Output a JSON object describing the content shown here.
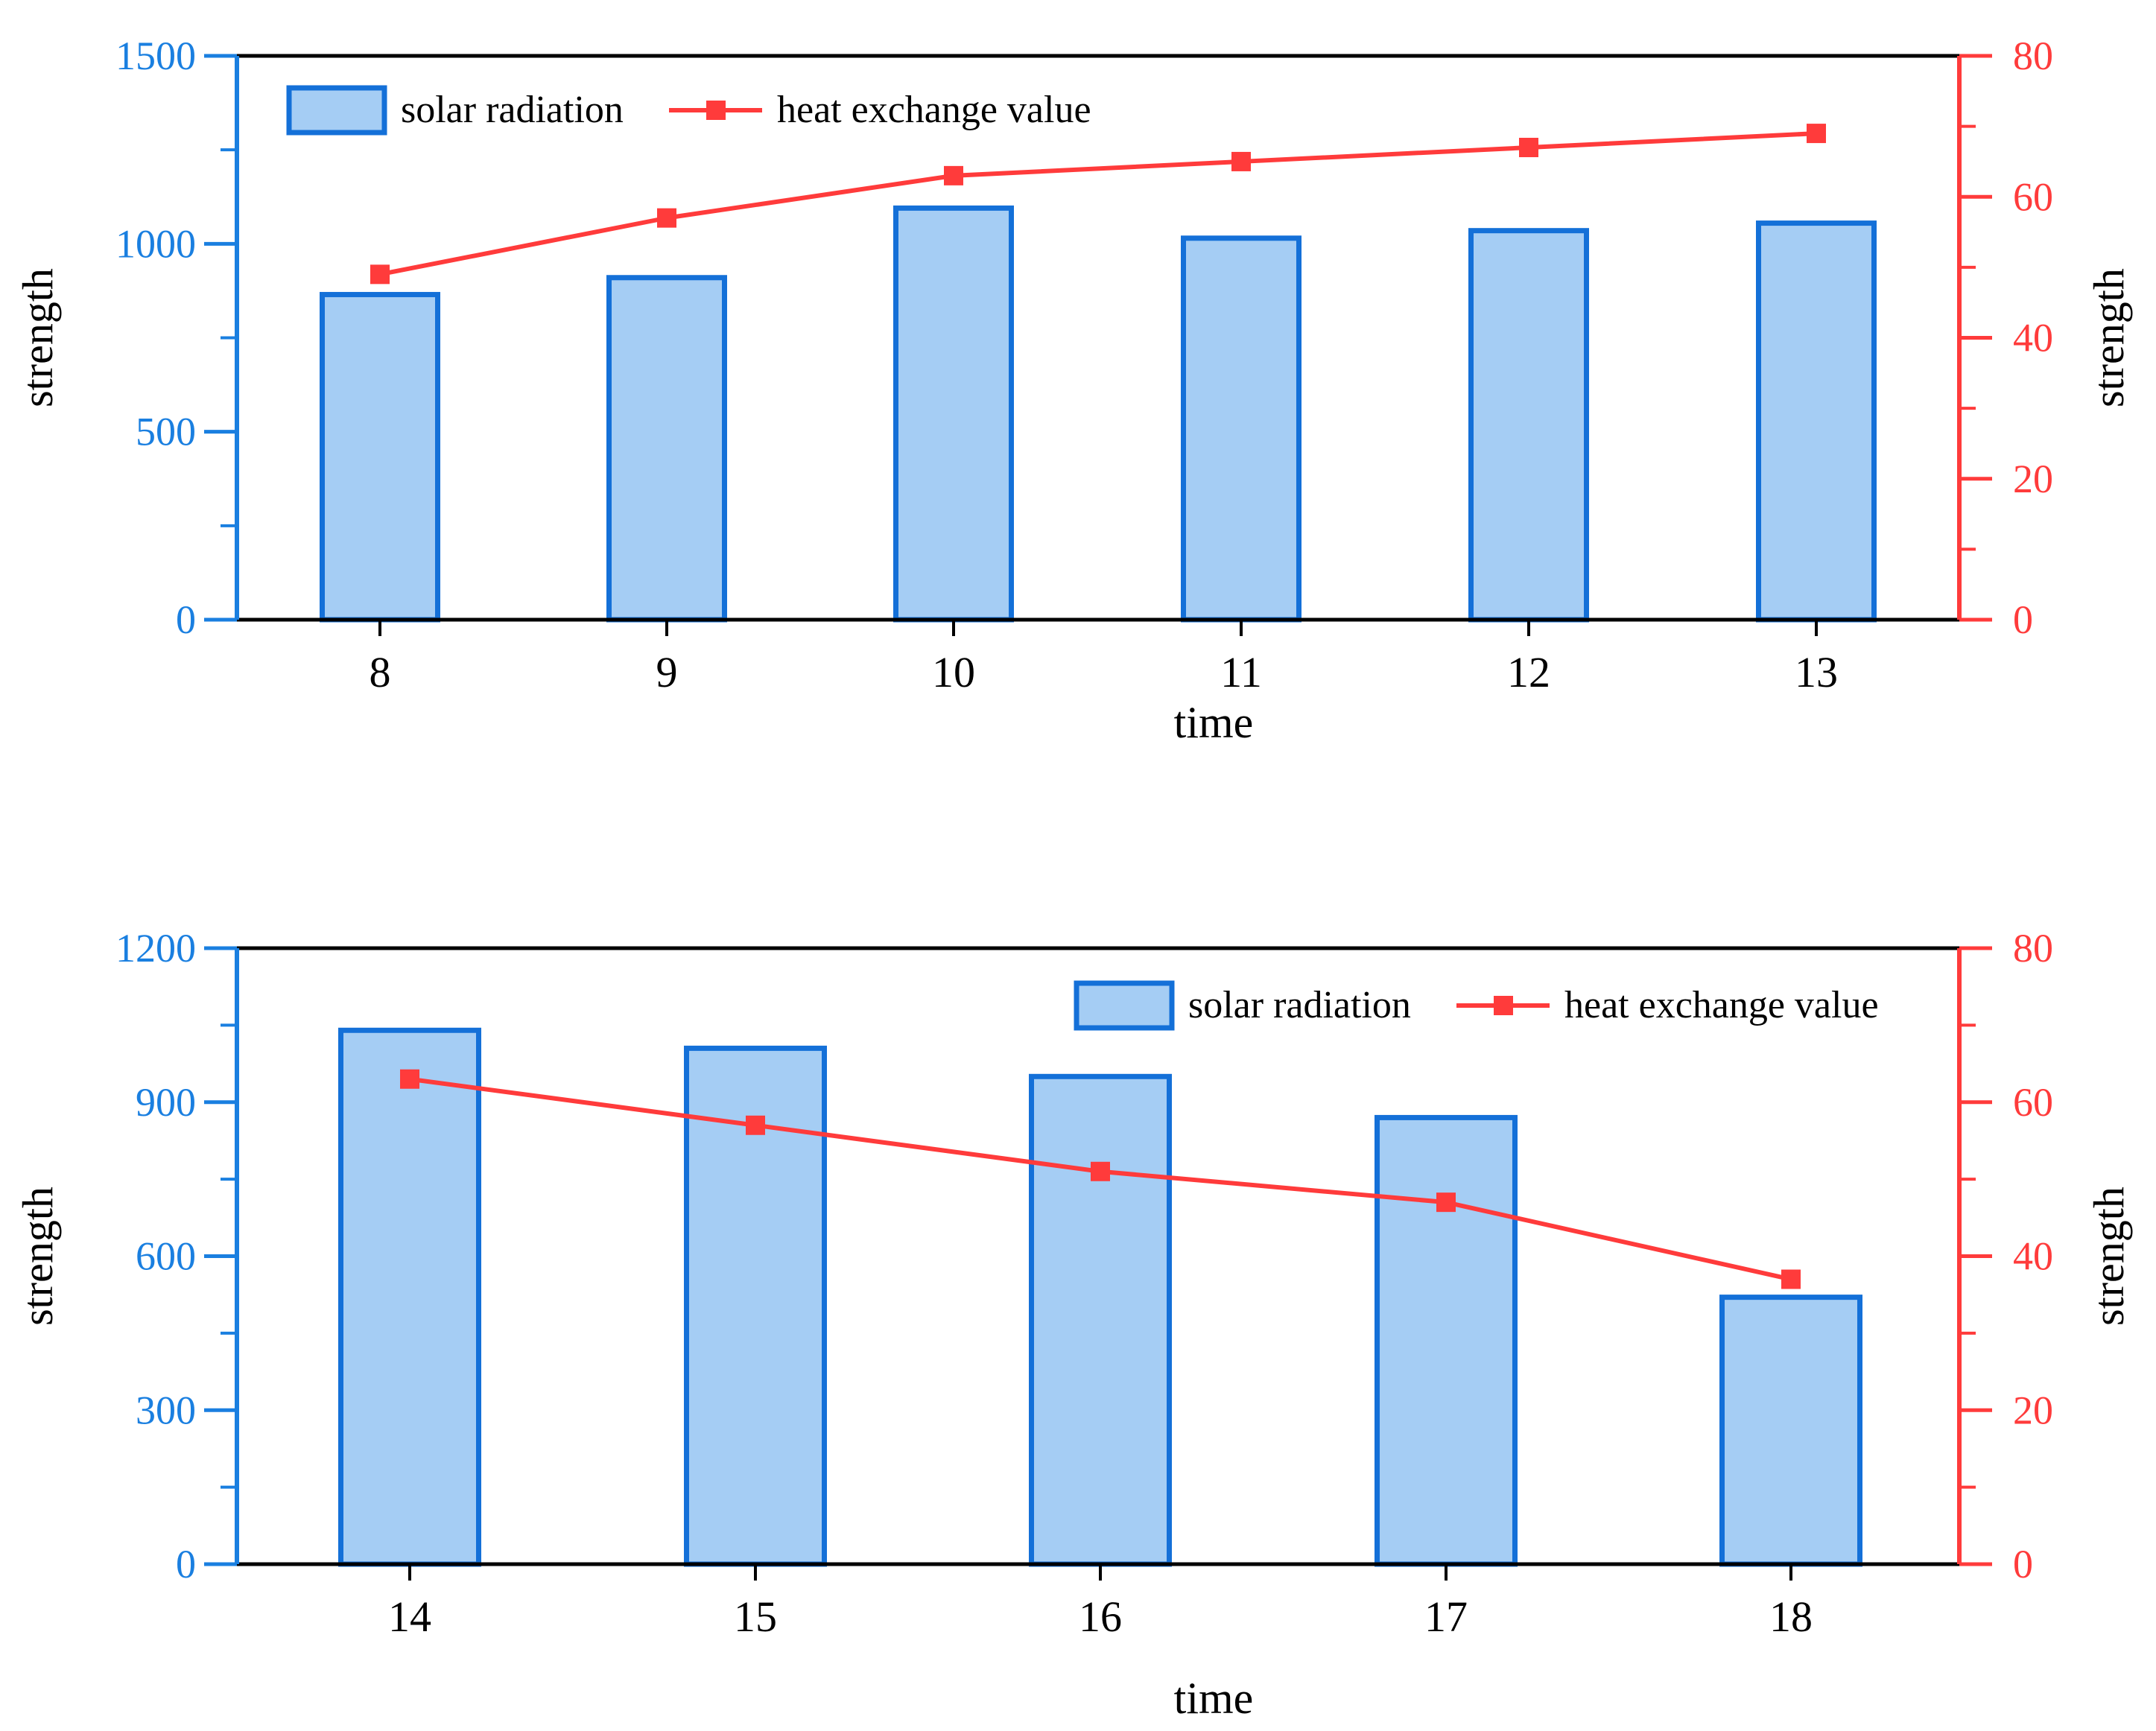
{
  "colors": {
    "left_axis": "#1a7fe0",
    "right_axis": "#ff3b3b",
    "bar_fill": "#a5cdf4",
    "bar_edge": "#1470d8",
    "line": "#ff3b3b",
    "frame": "#000000",
    "text": "#000000"
  },
  "chart_data": [
    {
      "type": "bar",
      "secondary_type": "line",
      "xlabel": "time",
      "ylabel_left": "strength",
      "ylabel_right": "strength",
      "categories": [
        "8",
        "9",
        "10",
        "11",
        "12",
        "13"
      ],
      "ylim_left": [
        0,
        1500
      ],
      "yticks_left": [
        0,
        500,
        1000,
        1500
      ],
      "ytick_labels_left": [
        "0",
        "500",
        "1000",
        "1500"
      ],
      "ylim_right": [
        0,
        80
      ],
      "yticks_right": [
        0,
        20,
        40,
        60,
        80
      ],
      "ytick_labels_right": [
        "0",
        "20",
        "40",
        "60",
        "80"
      ],
      "legend_position": "top-left",
      "series": [
        {
          "name": "solar radiation",
          "type": "bar",
          "axis": "left",
          "values": [
            865,
            910,
            1095,
            1015,
            1035,
            1055
          ]
        },
        {
          "name": "heat exchange value",
          "type": "line",
          "axis": "right",
          "marker": "square",
          "values": [
            49,
            57,
            63,
            65,
            67,
            69
          ]
        }
      ]
    },
    {
      "type": "bar",
      "secondary_type": "line",
      "xlabel": "time",
      "ylabel_left": "strength",
      "ylabel_right": "strength",
      "categories": [
        "14",
        "15",
        "16",
        "17",
        "18"
      ],
      "ylim_left": [
        0,
        1200
      ],
      "yticks_left": [
        0,
        300,
        600,
        900,
        1200
      ],
      "ytick_labels_left": [
        "0",
        "300",
        "600",
        "900",
        "1200"
      ],
      "ylim_right": [
        0,
        80
      ],
      "yticks_right": [
        0,
        20,
        40,
        60,
        80
      ],
      "ytick_labels_right": [
        "0",
        "20",
        "40",
        "60",
        "80"
      ],
      "legend_position": "top-right",
      "series": [
        {
          "name": "solar radiation",
          "type": "bar",
          "axis": "left",
          "values": [
            1040,
            1005,
            950,
            870,
            520
          ]
        },
        {
          "name": "heat exchange value",
          "type": "line",
          "axis": "right",
          "marker": "square",
          "values": [
            63,
            57,
            51,
            47,
            37
          ]
        }
      ]
    }
  ]
}
